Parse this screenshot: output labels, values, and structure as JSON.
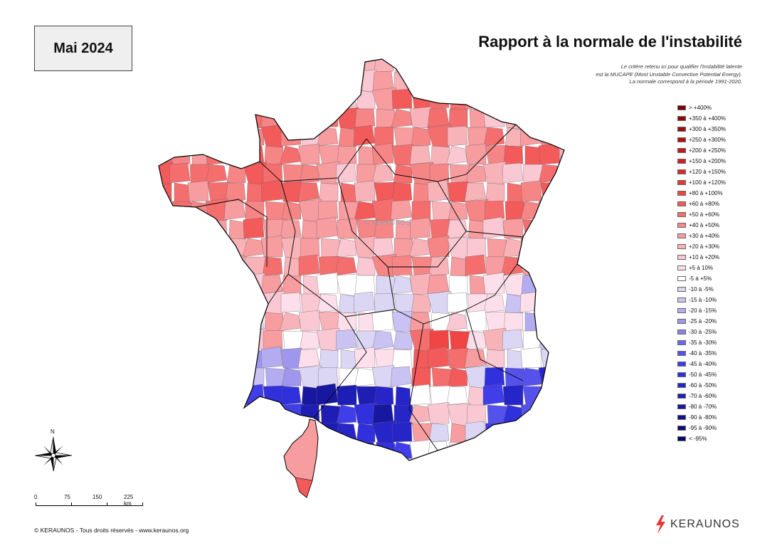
{
  "header": {
    "date_label": "Mai 2024",
    "title": "Rapport à la normale de l'instabilité",
    "notes": [
      "Le critère retenu ici pour qualifier l'instabilité latente",
      "est la MUCAPE (Most Unstable Convective Potential Energy).",
      "La normale correspond à la période 1991-2020."
    ]
  },
  "legend": [
    {
      "label": "> +400%",
      "color": "#7a0000"
    },
    {
      "label": "+350 à +400%",
      "color": "#8e0606"
    },
    {
      "label": "+300 à +350%",
      "color": "#a00b0b"
    },
    {
      "label": "+250 à +300%",
      "color": "#b31111"
    },
    {
      "label": "+200 à +250%",
      "color": "#c41818"
    },
    {
      "label": "+150 à +200%",
      "color": "#d31f1f"
    },
    {
      "label": "+120 à +150%",
      "color": "#e02828"
    },
    {
      "label": "+100 à +120%",
      "color": "#eb3333"
    },
    {
      "label": "+80 à +100%",
      "color": "#f04545"
    },
    {
      "label": "+60 à +80%",
      "color": "#f35a5a"
    },
    {
      "label": "+50 à +60%",
      "color": "#f56e6e"
    },
    {
      "label": "+40 à +50%",
      "color": "#f68585"
    },
    {
      "label": "+30 à +40%",
      "color": "#f79c9f"
    },
    {
      "label": "+20 à +30%",
      "color": "#f8b3b8"
    },
    {
      "label": "+10 à +20%",
      "color": "#fac8d3"
    },
    {
      "label": "+5 à 10%",
      "color": "#fcdfea"
    },
    {
      "label": "-5 à +5%",
      "color": "#ffffff"
    },
    {
      "label": "-10 à -5%",
      "color": "#dcd6f5"
    },
    {
      "label": "-15 à -10%",
      "color": "#c9c2f3"
    },
    {
      "label": "-20 à -15%",
      "color": "#b4acf0"
    },
    {
      "label": "-25 à -20%",
      "color": "#9f96ee"
    },
    {
      "label": "-30 à -25%",
      "color": "#8a81ec"
    },
    {
      "label": "-35 à -30%",
      "color": "#6f68ec"
    },
    {
      "label": "-40 à -35%",
      "color": "#5552ec"
    },
    {
      "label": "-45 à -40%",
      "color": "#3f3ee8"
    },
    {
      "label": "-50 à -45%",
      "color": "#3030dc"
    },
    {
      "label": "-60 à -50%",
      "color": "#2626c8"
    },
    {
      "label": "-70 à -60%",
      "color": "#1e1eb4"
    },
    {
      "label": "-80 à -70%",
      "color": "#1717a0"
    },
    {
      "label": "-90 à -80%",
      "color": "#10108c"
    },
    {
      "label": "-95 à -90%",
      "color": "#0b0b78"
    },
    {
      "label": "< -95%",
      "color": "#060664"
    }
  ],
  "map": {
    "watermark": "© KERAUNOS",
    "compass_north": "N"
  },
  "scale": {
    "labels": [
      "0",
      "75",
      "150",
      "225 km"
    ]
  },
  "footer": {
    "copyright": "© KERAUNOS - Tous droits réservés - www.keraunos.org"
  },
  "brand": {
    "name": "KERAUNOS",
    "accent": "#e53935"
  }
}
